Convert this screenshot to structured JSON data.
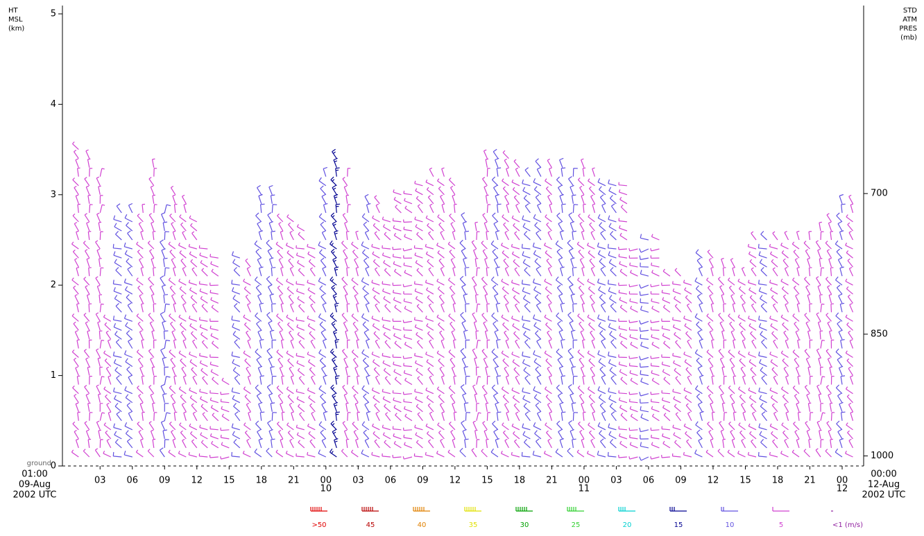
{
  "chart_data": {
    "type": "windbarb",
    "y_label_lines": [
      "HT",
      "MSL",
      "(km)"
    ],
    "y2_label_lines": [
      "STD",
      "ATM",
      "PRES",
      "(mb)"
    ],
    "ground_label": "ground",
    "start_label_lines": [
      "01:00",
      "09-Aug",
      "2002 UTC"
    ],
    "end_label_lines": [
      "00:00",
      "12-Aug",
      "2002 UTC"
    ],
    "xlim": [
      -0.5,
      74
    ],
    "xticks": [
      {
        "value": 3,
        "label": "03"
      },
      {
        "value": 6,
        "label": "06"
      },
      {
        "value": 9,
        "label": "09"
      },
      {
        "value": 12,
        "label": "12"
      },
      {
        "value": 15,
        "label": "15"
      },
      {
        "value": 18,
        "label": "18"
      },
      {
        "value": 21,
        "label": "21"
      },
      {
        "value": 24,
        "label": "00"
      },
      {
        "value": 27,
        "label": "03"
      },
      {
        "value": 30,
        "label": "06"
      },
      {
        "value": 33,
        "label": "09"
      },
      {
        "value": 36,
        "label": "12"
      },
      {
        "value": 39,
        "label": "15"
      },
      {
        "value": 42,
        "label": "18"
      },
      {
        "value": 45,
        "label": "21"
      },
      {
        "value": 48,
        "label": "00"
      },
      {
        "value": 51,
        "label": "03"
      },
      {
        "value": 54,
        "label": "06"
      },
      {
        "value": 57,
        "label": "09"
      },
      {
        "value": 60,
        "label": "12"
      },
      {
        "value": 63,
        "label": "15"
      },
      {
        "value": 66,
        "label": "18"
      },
      {
        "value": 69,
        "label": "21"
      },
      {
        "value": 72,
        "label": "00"
      }
    ],
    "day_labels": [
      {
        "value": 24,
        "label": "10"
      },
      {
        "value": 48,
        "label": "11"
      },
      {
        "value": 72,
        "label": "12"
      }
    ],
    "ylim": [
      0,
      5
    ],
    "yticks": [
      0,
      1,
      2,
      3,
      4,
      5
    ],
    "y2_scale": "standard-atmosphere",
    "y2ticks": [
      700,
      850,
      1000
    ],
    "bottom": 0.1,
    "spacing": 0.1,
    "hours": [
      1,
      2,
      3,
      4,
      5,
      6,
      7,
      8,
      9,
      10,
      11,
      12,
      13,
      14,
      15,
      16,
      17,
      18,
      19,
      20,
      21,
      22,
      23,
      24,
      25,
      26,
      27,
      28,
      29,
      30,
      31,
      32,
      33,
      34,
      35,
      36,
      37,
      38,
      39,
      40,
      41,
      42,
      43,
      44,
      45,
      46,
      47,
      48,
      49,
      50,
      51,
      52,
      53,
      54,
      55,
      56,
      57,
      58,
      59,
      60,
      61,
      62,
      63,
      64,
      65,
      66,
      67,
      68,
      69,
      70,
      71,
      72,
      73
    ],
    "tops": [
      3.5,
      3.4,
      3.2,
      1.6,
      2.8,
      2.8,
      2.8,
      3.3,
      2.8,
      3.0,
      2.9,
      2.7,
      2.4,
      2.3,
      0.9,
      2.3,
      2.2,
      3.0,
      3.0,
      2.7,
      2.7,
      2.6,
      2.4,
      3.2,
      3.4,
      3.2,
      2.5,
      2.9,
      2.9,
      2.7,
      3.0,
      3.0,
      3.1,
      3.2,
      3.2,
      3.1,
      2.7,
      2.6,
      3.4,
      3.4,
      3.4,
      3.3,
      3.2,
      3.3,
      3.3,
      3.3,
      3.2,
      3.3,
      3.2,
      3.1,
      3.1,
      3.1,
      2.4,
      2.5,
      2.5,
      2.1,
      2.1,
      2.0,
      2.3,
      2.3,
      2.2,
      2.2,
      2.1,
      2.5,
      2.5,
      2.5,
      2.5,
      2.5,
      2.5,
      2.6,
      2.7,
      2.9,
      2.9
    ],
    "speeds": [
      7,
      8,
      9,
      8,
      10,
      12,
      9,
      8,
      11,
      7,
      8,
      9,
      8,
      7,
      9,
      10,
      8,
      11,
      12,
      9,
      8,
      7,
      8,
      13,
      15,
      9,
      8,
      10,
      9,
      8,
      7,
      9,
      8,
      8,
      7,
      9,
      10,
      8,
      9,
      13,
      9,
      8,
      10,
      11,
      9,
      12,
      10,
      9,
      8,
      11,
      13,
      9,
      8,
      10,
      9,
      8,
      8,
      9,
      10,
      9,
      8,
      7,
      9,
      8,
      10,
      9,
      8,
      7,
      8,
      9,
      8,
      10,
      9
    ],
    "directions": [
      330,
      340,
      350,
      320,
      300,
      310,
      330,
      340,
      350,
      330,
      320,
      310,
      300,
      290,
      280,
      300,
      320,
      330,
      340,
      330,
      320,
      300,
      310,
      320,
      330,
      340,
      330,
      320,
      310,
      300,
      290,
      280,
      300,
      310,
      320,
      330,
      340,
      350,
      340,
      330,
      320,
      310,
      300,
      310,
      320,
      330,
      340,
      330,
      320,
      310,
      300,
      290,
      280,
      270,
      280,
      290,
      300,
      310,
      320,
      330,
      340,
      330,
      320,
      310,
      300,
      310,
      320,
      330,
      340,
      350,
      340,
      330,
      320
    ],
    "legend": [
      {
        "label": ">50",
        "color": "#e00000"
      },
      {
        "label": 45,
        "color": "#b80000"
      },
      {
        "label": 40,
        "color": "#e08000"
      },
      {
        "label": 35,
        "color": "#e0e000"
      },
      {
        "label": 30,
        "color": "#00a000"
      },
      {
        "label": 25,
        "color": "#30d030"
      },
      {
        "label": 20,
        "color": "#00d0d0"
      },
      {
        "label": 15,
        "color": "#000090"
      },
      {
        "label": 10,
        "color": "#6050e0"
      },
      {
        "label": 5,
        "color": "#d040d0"
      },
      {
        "label": "<1  (m/s)",
        "color": "#9020a0"
      }
    ]
  }
}
